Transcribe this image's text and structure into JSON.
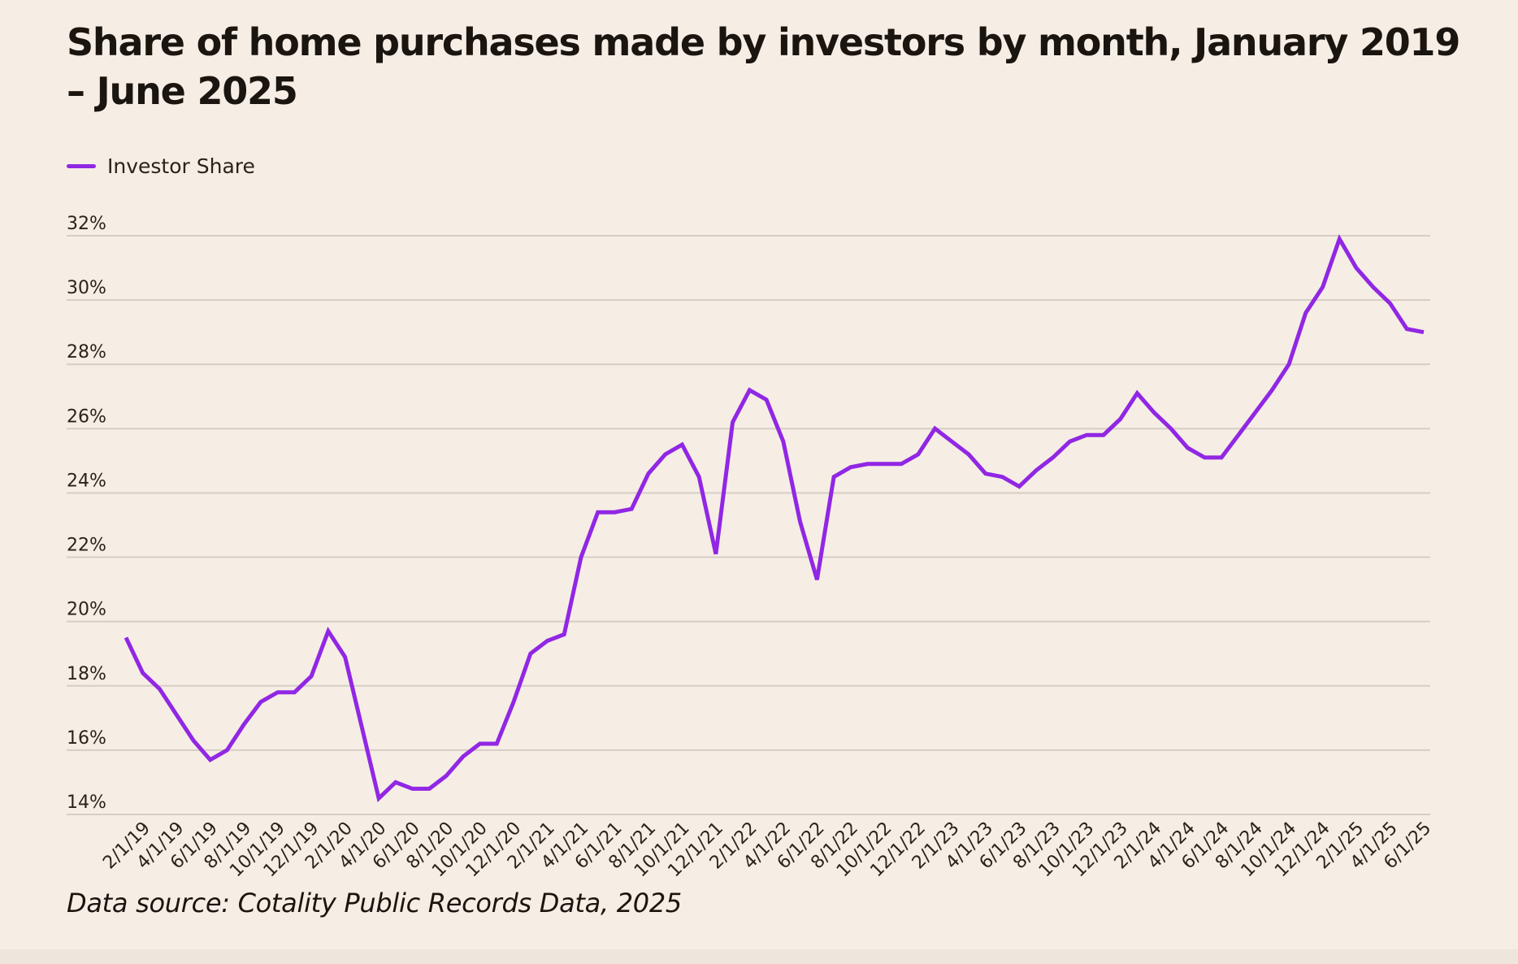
{
  "chart_data": {
    "type": "line",
    "title": "Share of home purchases made by investors by month, January 2019 – June 2025",
    "xlabel": "",
    "ylabel": "",
    "ylim": [
      14,
      32
    ],
    "y_ticks": [
      "14%",
      "16%",
      "18%",
      "20%",
      "22%",
      "24%",
      "26%",
      "28%",
      "30%",
      "32%"
    ],
    "y_tick_values": [
      14,
      16,
      18,
      20,
      22,
      24,
      26,
      28,
      30,
      32
    ],
    "grid": true,
    "legend_position": "top-left",
    "x_tick_labels": [
      "2/1/19",
      "4/1/19",
      "6/1/19",
      "8/1/19",
      "10/1/19",
      "12/1/19",
      "2/1/20",
      "4/1/20",
      "6/1/20",
      "8/1/20",
      "10/1/20",
      "12/1/20",
      "2/1/21",
      "4/1/21",
      "6/1/21",
      "8/1/21",
      "10/1/21",
      "12/1/21",
      "2/1/22",
      "4/1/22",
      "6/1/22",
      "8/1/22",
      "10/1/22",
      "12/1/22",
      "2/1/23",
      "4/1/23",
      "6/1/23",
      "8/1/23",
      "10/1/23",
      "12/1/23",
      "2/1/24",
      "4/1/24",
      "6/1/24",
      "8/1/24",
      "10/1/24",
      "12/1/24",
      "2/1/25",
      "4/1/25",
      "6/1/25"
    ],
    "x": [
      "1/1/19",
      "2/1/19",
      "3/1/19",
      "4/1/19",
      "5/1/19",
      "6/1/19",
      "7/1/19",
      "8/1/19",
      "9/1/19",
      "10/1/19",
      "11/1/19",
      "12/1/19",
      "1/1/20",
      "2/1/20",
      "3/1/20",
      "4/1/20",
      "5/1/20",
      "6/1/20",
      "7/1/20",
      "8/1/20",
      "9/1/20",
      "10/1/20",
      "11/1/20",
      "12/1/20",
      "1/1/21",
      "2/1/21",
      "3/1/21",
      "4/1/21",
      "5/1/21",
      "6/1/21",
      "7/1/21",
      "8/1/21",
      "9/1/21",
      "10/1/21",
      "11/1/21",
      "12/1/21",
      "1/1/22",
      "2/1/22",
      "3/1/22",
      "4/1/22",
      "5/1/22",
      "6/1/22",
      "7/1/22",
      "8/1/22",
      "9/1/22",
      "10/1/22",
      "11/1/22",
      "12/1/22",
      "1/1/23",
      "2/1/23",
      "3/1/23",
      "4/1/23",
      "5/1/23",
      "6/1/23",
      "7/1/23",
      "8/1/23",
      "9/1/23",
      "10/1/23",
      "11/1/23",
      "12/1/23",
      "1/1/24",
      "2/1/24",
      "3/1/24",
      "4/1/24",
      "5/1/24",
      "6/1/24",
      "7/1/24",
      "8/1/24",
      "9/1/24",
      "10/1/24",
      "11/1/24",
      "12/1/24",
      "1/1/25",
      "2/1/25",
      "3/1/25",
      "4/1/25",
      "5/1/25",
      "6/1/25"
    ],
    "series": [
      {
        "name": "Investor Share",
        "color": "#9127e4",
        "values": [
          19.5,
          18.4,
          17.9,
          17.1,
          16.3,
          15.7,
          16.0,
          16.8,
          17.5,
          17.8,
          17.8,
          18.3,
          19.7,
          18.9,
          16.7,
          14.5,
          15.0,
          14.8,
          14.8,
          15.2,
          15.8,
          16.2,
          16.2,
          17.5,
          19.0,
          19.4,
          19.6,
          22.0,
          23.4,
          23.4,
          23.5,
          24.6,
          25.2,
          25.5,
          24.5,
          22.1,
          26.2,
          27.2,
          26.9,
          25.6,
          23.1,
          21.3,
          24.5,
          24.8,
          24.9,
          24.9,
          24.9,
          25.2,
          26.0,
          25.6,
          25.2,
          24.6,
          24.5,
          24.2,
          24.7,
          25.1,
          25.6,
          25.8,
          25.8,
          26.3,
          27.1,
          26.5,
          26.0,
          25.4,
          25.1,
          25.1,
          25.8,
          26.5,
          27.2,
          28.0,
          29.6,
          30.4,
          31.9,
          31.0,
          30.4,
          29.9,
          29.1,
          29.0
        ]
      }
    ],
    "source": "Data source: Cotality Public Records Data, 2025"
  }
}
